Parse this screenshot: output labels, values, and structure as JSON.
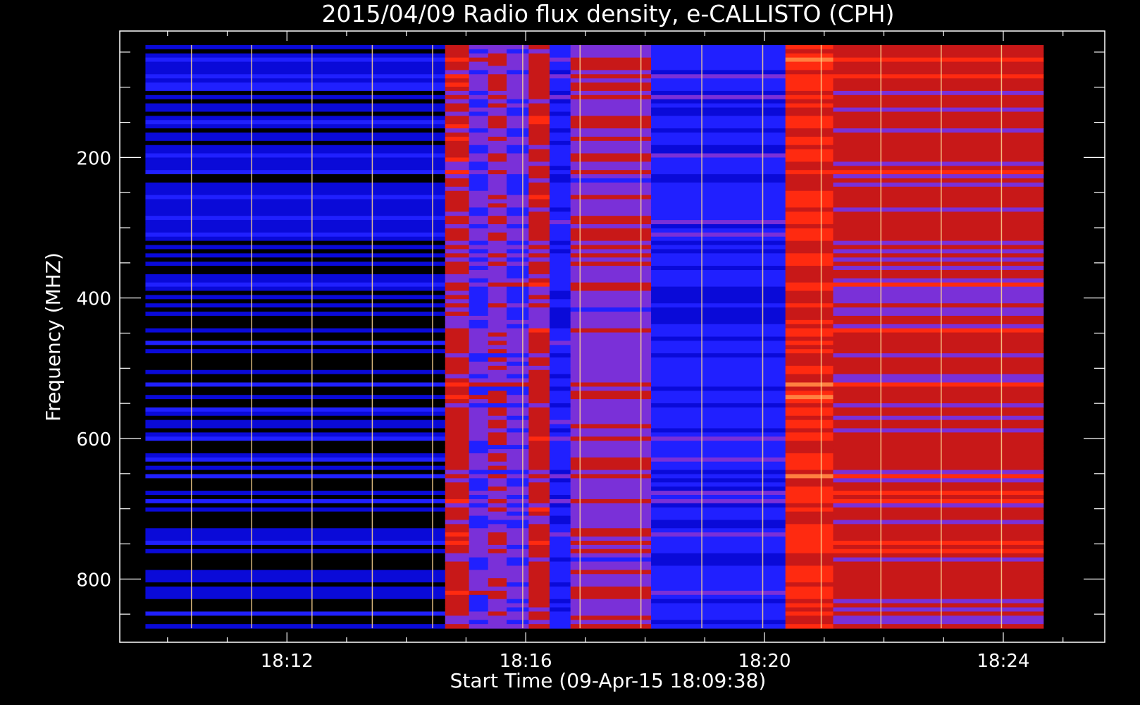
{
  "chart_data": {
    "type": "heatmap",
    "title": "2015/04/09  Radio flux density, e-CALLISTO (CPH)",
    "xlabel": "Start Time (09-Apr-15 18:09:38)",
    "ylabel": "Frequency (MHZ)",
    "x_ticks": [
      {
        "label": "18:12",
        "minute": 12
      },
      {
        "label": "18:16",
        "minute": 16
      },
      {
        "label": "18:20",
        "minute": 20
      },
      {
        "label": "18:24",
        "minute": 24
      }
    ],
    "x_range_minutes_after_1800": [
      9.2,
      25.7
    ],
    "data_extent_minutes_after_1800": [
      9.63,
      24.67
    ],
    "y_ticks": [
      200,
      400,
      600,
      800
    ],
    "y_range_mhz": [
      20,
      890
    ],
    "data_extent_mhz": [
      40,
      870
    ],
    "y_axis_inverted": true,
    "colormap": [
      "#000000",
      "#0a0ad8",
      "#2020ff",
      "#7a30d8",
      "#c81818",
      "#ff2a10",
      "#ff8040",
      "#ffe070",
      "#ffffd0"
    ],
    "segments": [
      {
        "start": 9.63,
        "end": 14.65,
        "level": "low"
      },
      {
        "start": 14.65,
        "end": 15.05,
        "level": "high"
      },
      {
        "start": 15.05,
        "end": 15.37,
        "level": "mid"
      },
      {
        "start": 15.37,
        "end": 15.68,
        "level": "mid-high"
      },
      {
        "start": 15.68,
        "end": 16.05,
        "level": "mid"
      },
      {
        "start": 16.05,
        "end": 16.4,
        "level": "high"
      },
      {
        "start": 16.4,
        "end": 16.75,
        "level": "blue"
      },
      {
        "start": 16.75,
        "end": 18.1,
        "level": "mid-high"
      },
      {
        "start": 18.1,
        "end": 20.35,
        "level": "blue"
      },
      {
        "start": 20.35,
        "end": 21.15,
        "level": "very-high"
      },
      {
        "start": 21.15,
        "end": 24.67,
        "level": "high"
      }
    ],
    "vertical_streaks_minutes": [
      10.4,
      11.41,
      12.42,
      13.43,
      14.44,
      15.95,
      16.91,
      17.93,
      18.95,
      19.97,
      20.95,
      21.95,
      22.96,
      23.97
    ]
  }
}
